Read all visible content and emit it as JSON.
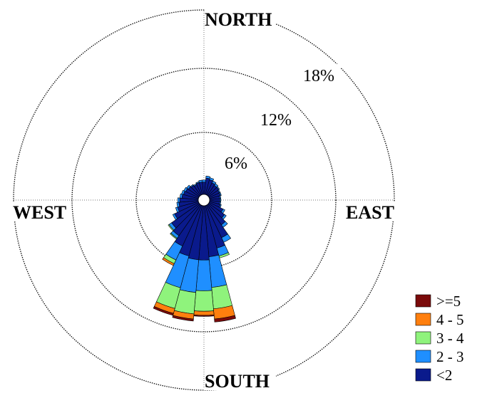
{
  "chart_data": {
    "type": "windrose",
    "title": "",
    "directions": {
      "north": "NORTH",
      "south": "SOUTH",
      "east": "EAST",
      "west": "WEST"
    },
    "ring_values": [
      6,
      12,
      18
    ],
    "ring_labels": [
      "6%",
      "12%",
      "18%"
    ],
    "radial_max": 21,
    "sector_width_deg": 10,
    "legend": {
      "placement": "bottom-right",
      "entries": [
        {
          "label": ">=5",
          "color": "#7a0a0a"
        },
        {
          "label": "4 - 5",
          "color": "#ff7f0e"
        },
        {
          "label": "3 - 4",
          "color": "#8ff37c"
        },
        {
          "label": "2 - 3",
          "color": "#1f8fff"
        },
        {
          "label": "<2",
          "color": "#0a1a8c"
        }
      ]
    },
    "series": [
      {
        "name": "<2",
        "color": "#0a1a8c",
        "values": [
          1.2,
          1.6,
          1.5,
          1.3,
          1.2,
          1.2,
          1.1,
          1.1,
          1.0,
          1.0,
          1.0,
          1.1,
          1.5,
          1.9,
          2.4,
          3.5,
          4.3,
          5.0,
          5.3,
          5.3,
          5.1,
          4.4,
          3.7,
          3.3,
          2.6,
          2.1,
          1.9,
          1.8,
          1.6,
          1.5,
          1.4,
          1.3,
          1.2,
          1.1,
          1.2,
          1.2
        ]
      },
      {
        "name": "2 - 3",
        "color": "#1f8fff",
        "values": [
          0.2,
          0.2,
          0.2,
          0.2,
          0.2,
          0.1,
          0.1,
          0.1,
          0.1,
          0.1,
          0.1,
          0.1,
          0.2,
          0.2,
          0.3,
          0.5,
          0.8,
          3.0,
          3.0,
          3.2,
          3.2,
          1.5,
          0.3,
          0.3,
          0.2,
          0.2,
          0.2,
          0.2,
          0.2,
          0.2,
          0.2,
          0.2,
          0.1,
          0.1,
          0.1,
          0.2
        ]
      },
      {
        "name": "3 - 4",
        "color": "#8ff37c",
        "values": [
          0,
          0,
          0,
          0,
          0,
          0,
          0,
          0,
          0,
          0,
          0,
          0,
          0,
          0,
          0,
          0,
          0.2,
          2.1,
          2.0,
          2.1,
          2.1,
          0.4,
          0.1,
          0.1,
          0,
          0,
          0,
          0,
          0,
          0,
          0,
          0,
          0,
          0,
          0,
          0
        ]
      },
      {
        "name": "4 - 5",
        "color": "#ff7f0e",
        "values": [
          0,
          0,
          0,
          0,
          0,
          0,
          0,
          0,
          0,
          0,
          0,
          0,
          0,
          0,
          0,
          0,
          0,
          1.0,
          0.4,
          0.5,
          0.5,
          0.2,
          0,
          0,
          0,
          0,
          0,
          0,
          0,
          0,
          0,
          0,
          0,
          0,
          0,
          0
        ]
      },
      {
        "name": ">=5",
        "color": "#7a0a0a",
        "values": [
          0,
          0,
          0,
          0,
          0,
          0,
          0,
          0,
          0,
          0,
          0,
          0,
          0,
          0,
          0,
          0,
          0,
          0.3,
          0.1,
          0.2,
          0.2,
          0,
          0,
          0,
          0,
          0,
          0,
          0,
          0,
          0,
          0,
          0,
          0,
          0,
          0,
          0
        ]
      }
    ]
  }
}
